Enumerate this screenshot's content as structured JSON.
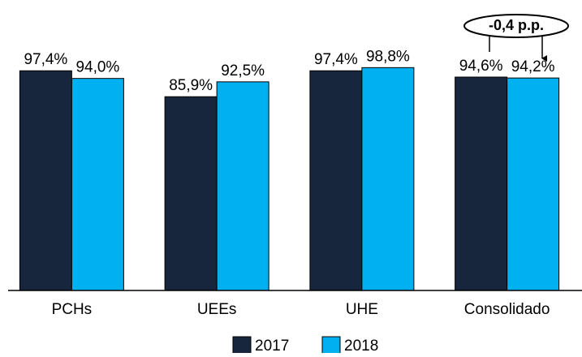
{
  "chart_data": {
    "type": "bar",
    "categories": [
      "PCHs",
      "UEEs",
      "UHE",
      "Consolidado"
    ],
    "series": [
      {
        "name": "2017",
        "color": "#17263c",
        "values": [
          97.4,
          85.9,
          97.4,
          94.6
        ],
        "value_labels": [
          "97,4%",
          "85,9%",
          "97,4%",
          "94,6%"
        ]
      },
      {
        "name": "2018",
        "color": "#00b0f0",
        "values": [
          94.0,
          92.5,
          98.8,
          94.2
        ],
        "value_labels": [
          "94,0%",
          "92,5%",
          "98,8%",
          "94,2%"
        ]
      }
    ],
    "ylim": [
      0,
      100
    ],
    "annotation": "-0,4 p.p.",
    "legend": "bottom"
  }
}
